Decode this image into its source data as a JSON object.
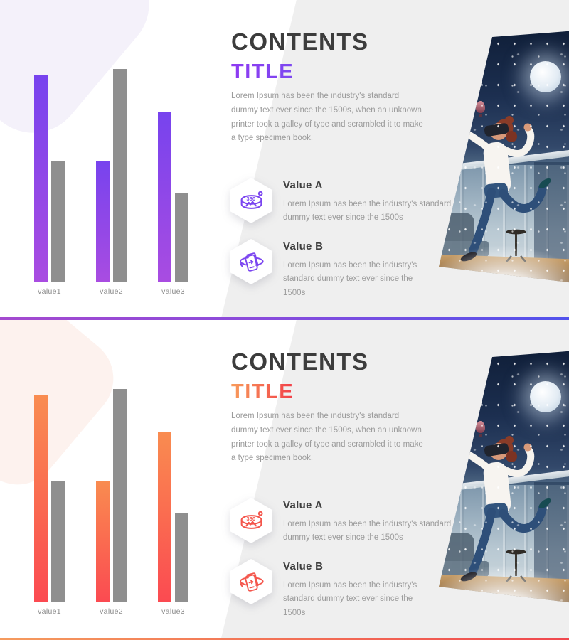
{
  "slides": [
    {
      "heading": "CONTENTS",
      "subheading": "TITLE",
      "paragraph": "Lorem Ipsum has been the industry's standard dummy text ever since the 1500s, when an unknown printer took a galley of type and scrambled it to make a type specimen book.",
      "values": [
        {
          "label": "Value A",
          "desc": "Lorem Ipsum has been the industry's standard dummy text ever since the 1500s",
          "icon": "vr-360-icon"
        },
        {
          "label": "Value B",
          "desc": "Lorem Ipsum has been the industry's standard dummy text ever since the 1500s",
          "icon": "rotate-phone-icon"
        }
      ],
      "theme": {
        "accent_title_gradient": [
          "#8F3BF2",
          "#7D49F0"
        ],
        "bar_gradient": [
          "#7743EE",
          "#A94CE1"
        ],
        "gray_bar": "#8F8F8F",
        "icon_color": "#7B45F0",
        "divider_gradient": [
          "#A44ACF",
          "#5152EC"
        ],
        "blob_color": "#F4F1FA",
        "bg_gray": "#EFEFEF"
      },
      "chart_data": {
        "type": "bar",
        "categories": [
          "value1",
          "value2",
          "value3"
        ],
        "series": [
          {
            "name": "accent",
            "values": [
              97,
              57,
              80
            ]
          },
          {
            "name": "gray",
            "values": [
              57,
              100,
              42
            ]
          }
        ],
        "title": "",
        "xlabel": "",
        "ylabel": "",
        "ylim": [
          0,
          100
        ],
        "grid": false,
        "legend": "none"
      }
    },
    {
      "heading": "CONTENTS",
      "subheading": "TITLE",
      "paragraph": "Lorem Ipsum has been the industry's standard dummy text ever since the 1500s, when an unknown printer took a galley of type and scrambled it to make a type specimen book.",
      "values": [
        {
          "label": "Value A",
          "desc": "Lorem Ipsum has been the industry's standard dummy text ever since the 1500s",
          "icon": "vr-360-icon"
        },
        {
          "label": "Value B",
          "desc": "Lorem Ipsum has been the industry's standard dummy text ever since the 1500s",
          "icon": "rotate-phone-icon"
        }
      ],
      "theme": {
        "accent_title_gradient": [
          "#F89C5B",
          "#F23F49"
        ],
        "bar_gradient": [
          "#F98C50",
          "#FB4A51"
        ],
        "gray_bar": "#8F8F8F",
        "icon_color": "#F4564C",
        "divider_gradient": [
          "#F59B5E",
          "#F0474E"
        ],
        "blob_color": "#FDF2EE",
        "bg_gray": "#EFEFEF"
      },
      "chart_data": {
        "type": "bar",
        "categories": [
          "value1",
          "value2",
          "value3"
        ],
        "series": [
          {
            "name": "accent",
            "values": [
              97,
              57,
              80
            ]
          },
          {
            "name": "gray",
            "values": [
              57,
              100,
              42
            ]
          }
        ],
        "title": "",
        "xlabel": "",
        "ylabel": "",
        "ylim": [
          0,
          100
        ],
        "grid": false,
        "legend": "none"
      }
    }
  ]
}
